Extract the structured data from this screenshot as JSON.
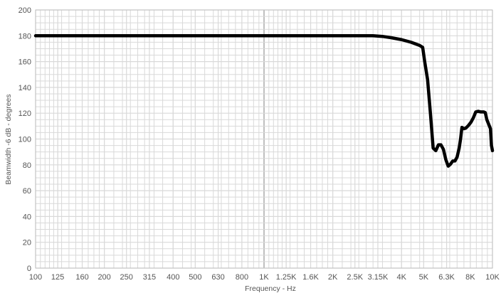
{
  "chart_data": {
    "type": "line",
    "title": "",
    "xlabel": "Frequency - Hz",
    "ylabel": "Beamwidth -6 dB - degrees",
    "x_scale": "log",
    "xlim": [
      100,
      10000
    ],
    "ylim": [
      0,
      200
    ],
    "y_ticks": [
      0,
      20,
      40,
      60,
      80,
      100,
      120,
      140,
      160,
      180,
      200
    ],
    "x_ticks": [
      {
        "value": 100,
        "label": "100"
      },
      {
        "value": 125,
        "label": "125"
      },
      {
        "value": 160,
        "label": "160"
      },
      {
        "value": 200,
        "label": "200"
      },
      {
        "value": 250,
        "label": "250"
      },
      {
        "value": 315,
        "label": "315"
      },
      {
        "value": 400,
        "label": "400"
      },
      {
        "value": 500,
        "label": "500"
      },
      {
        "value": 630,
        "label": "630"
      },
      {
        "value": 800,
        "label": "800"
      },
      {
        "value": 1000,
        "label": "1K"
      },
      {
        "value": 1250,
        "label": "1.25K"
      },
      {
        "value": 1600,
        "label": "1.6K"
      },
      {
        "value": 2000,
        "label": "2K"
      },
      {
        "value": 2500,
        "label": "2.5K"
      },
      {
        "value": 3150,
        "label": "3.15K"
      },
      {
        "value": 4000,
        "label": "4K"
      },
      {
        "value": 5000,
        "label": "5K"
      },
      {
        "value": 6300,
        "label": "6.3K"
      },
      {
        "value": 8000,
        "label": "8K"
      },
      {
        "value": 10000,
        "label": "10K"
      }
    ],
    "grid": true,
    "legend": "none",
    "series": [
      {
        "color": "#000000",
        "points": [
          [
            100,
            180
          ],
          [
            200,
            180
          ],
          [
            500,
            180
          ],
          [
            1000,
            180
          ],
          [
            2000,
            180
          ],
          [
            3000,
            180
          ],
          [
            3300,
            179.5
          ],
          [
            3600,
            178.5
          ],
          [
            4000,
            177
          ],
          [
            4400,
            175
          ],
          [
            4800,
            172.5
          ],
          [
            4950,
            171
          ],
          [
            5050,
            160
          ],
          [
            5200,
            146
          ],
          [
            5350,
            120
          ],
          [
            5500,
            93
          ],
          [
            5650,
            91
          ],
          [
            5800,
            95.5
          ],
          [
            5950,
            95.5
          ],
          [
            6100,
            92
          ],
          [
            6250,
            84
          ],
          [
            6400,
            79
          ],
          [
            6550,
            80.5
          ],
          [
            6700,
            83
          ],
          [
            6850,
            83
          ],
          [
            7000,
            86
          ],
          [
            7150,
            93
          ],
          [
            7250,
            100
          ],
          [
            7350,
            109
          ],
          [
            7500,
            108
          ],
          [
            7650,
            108.5
          ],
          [
            7850,
            110.5
          ],
          [
            8050,
            113
          ],
          [
            8250,
            116.5
          ],
          [
            8450,
            121
          ],
          [
            8650,
            121.5
          ],
          [
            8900,
            121
          ],
          [
            9150,
            121
          ],
          [
            9300,
            120.5
          ],
          [
            9450,
            115
          ],
          [
            9600,
            112
          ],
          [
            9800,
            108
          ],
          [
            9900,
            95
          ],
          [
            10000,
            91
          ]
        ]
      }
    ]
  },
  "colors": {
    "background": "#ffffff",
    "grid": "#d9d9d9",
    "grid_major": "#bfbfbf",
    "axis": "#bfbfbf",
    "text": "#555555",
    "series": "#000000"
  }
}
